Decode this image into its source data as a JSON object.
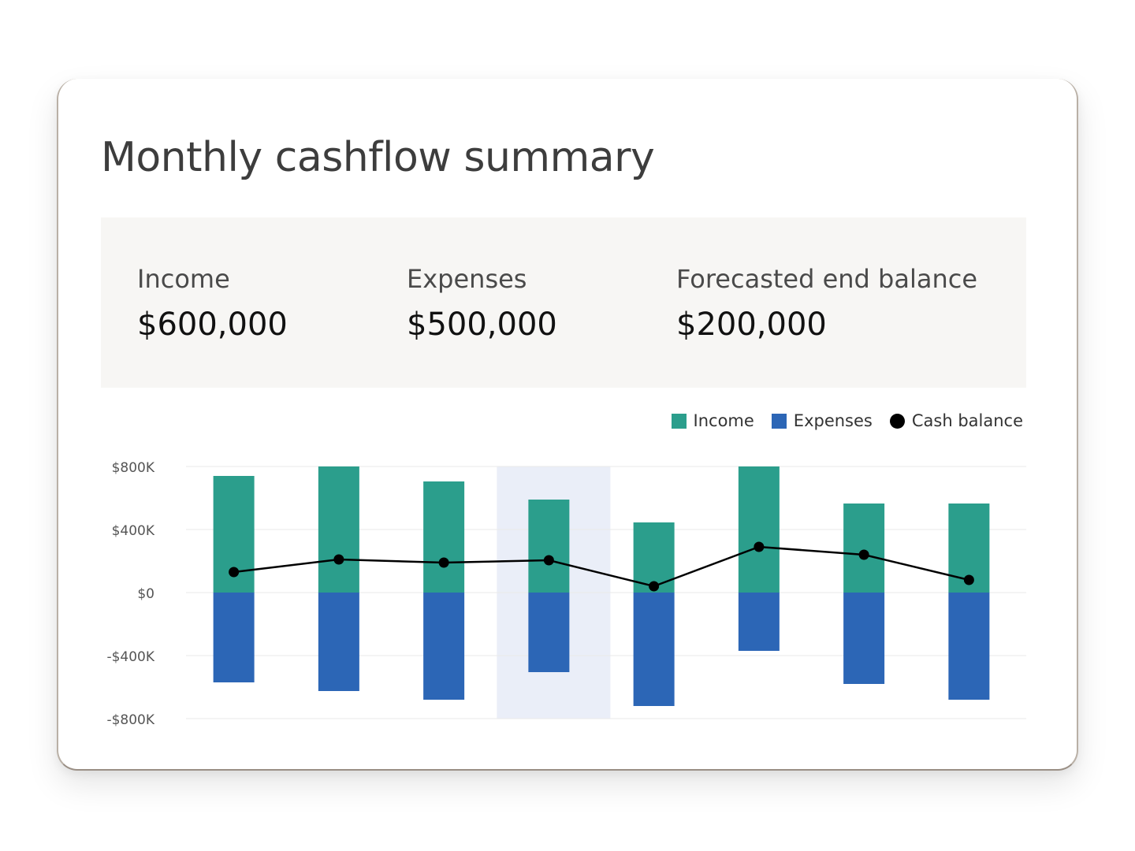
{
  "title": "Monthly cashflow summary",
  "summary": {
    "income_label": "Income",
    "income_value": "$600,000",
    "expenses_label": "Expenses",
    "expenses_value": "$500,000",
    "balance_label": "Forecasted end balance",
    "balance_value": "$200,000"
  },
  "legend": {
    "income": "Income",
    "expenses": "Expenses",
    "cash": "Cash balance"
  },
  "colors": {
    "income": "#2b9e8c",
    "expenses": "#2c66b6",
    "cash": "#000000",
    "highlight": "#eaeef8",
    "grid": "#e9e9e9"
  },
  "chart_data": {
    "type": "bar",
    "ylim": [
      -800,
      800
    ],
    "yticks": [
      800,
      400,
      0,
      -400,
      -800
    ],
    "ytick_labels": [
      "$800K",
      "$400K",
      "$0",
      "-$400K",
      "-$800K"
    ],
    "highlight_index": 3,
    "series": [
      {
        "name": "Income",
        "values": [
          740,
          810,
          705,
          590,
          445,
          810,
          565,
          565
        ]
      },
      {
        "name": "Expenses",
        "values": [
          -570,
          -625,
          -680,
          -505,
          -720,
          -370,
          -580,
          -680
        ]
      },
      {
        "name": "Cash balance",
        "values": [
          130,
          210,
          190,
          205,
          40,
          290,
          240,
          80
        ]
      }
    ]
  }
}
